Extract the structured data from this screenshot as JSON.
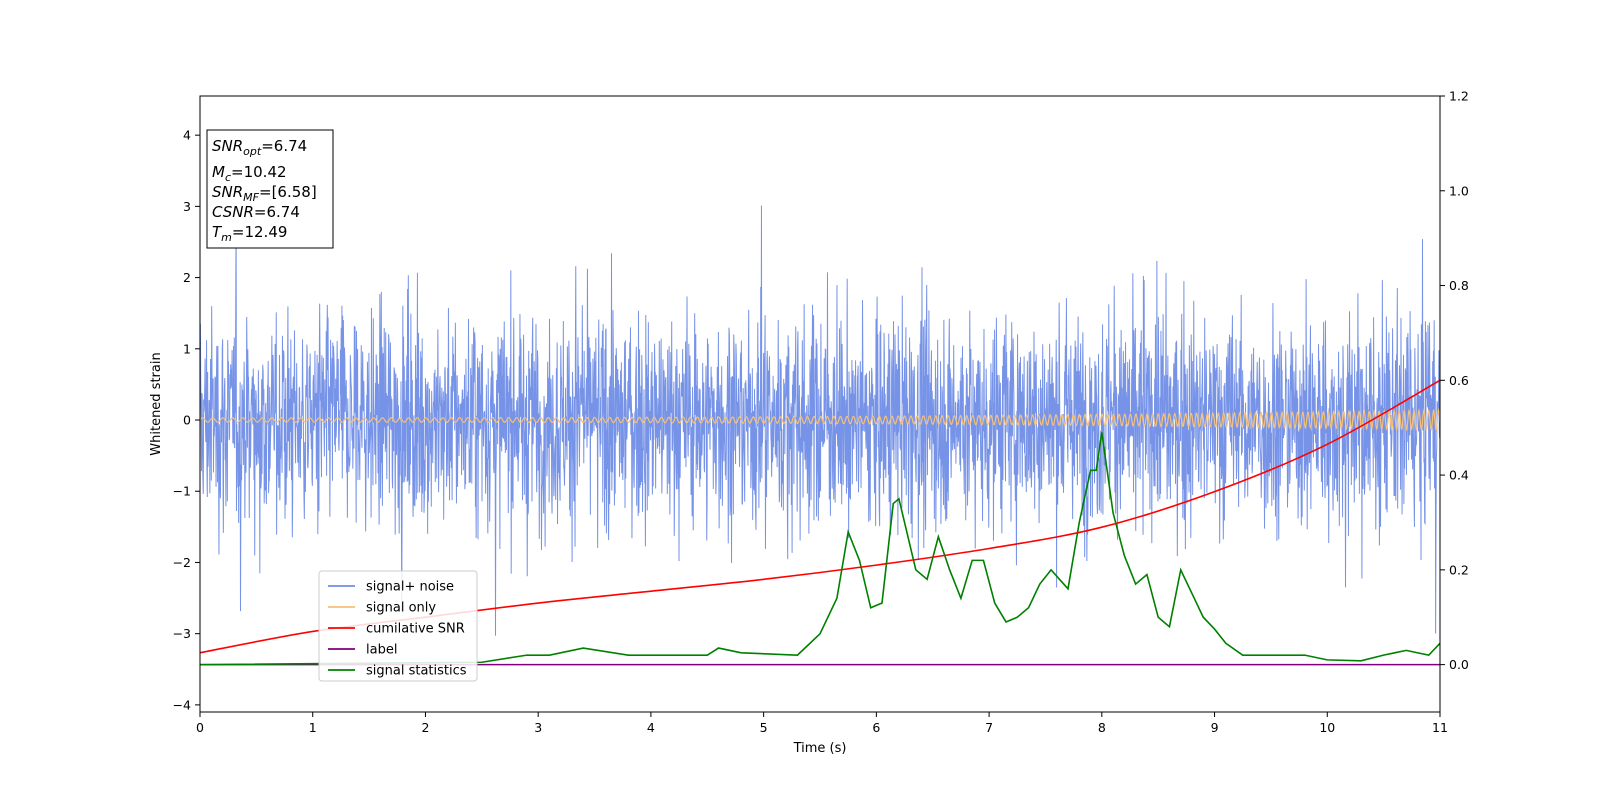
{
  "chart_data": {
    "type": "line",
    "title": "",
    "xlabel": "Time (s)",
    "ylabel": "Whitened strain",
    "xlim": [
      0,
      11
    ],
    "ylim": [
      -4.1,
      4.55
    ],
    "y2lim": [
      -0.1,
      1.2
    ],
    "xticks": [
      "0",
      "1",
      "2",
      "3",
      "4",
      "5",
      "6",
      "7",
      "8",
      "9",
      "10",
      "11"
    ],
    "yticks": [
      "−4",
      "−3",
      "−2",
      "−1",
      "0",
      "1",
      "2",
      "3",
      "4"
    ],
    "y2ticks": [
      "0.0",
      "0.2",
      "0.4",
      "0.6",
      "0.8",
      "1.0",
      "1.2"
    ],
    "grid": false,
    "legend_position": "lower-left",
    "stats": [
      {
        "name": "SNR",
        "sub": "opt",
        "value": "=6.74"
      },
      {
        "name": "M",
        "sub": "c",
        "value": "=10.42"
      },
      {
        "name": "SNR",
        "sub": "MF",
        "value": "=[6.58]"
      },
      {
        "name": "CSNR",
        "sub": "",
        "value": "=6.74"
      },
      {
        "name": "T",
        "sub": "m",
        "value": "=12.49"
      }
    ],
    "series": [
      {
        "name": "signal+ noise",
        "color": "#6f8de6",
        "axis": "left",
        "description": "whitened noisy strain, roughly Gaussian, amplitude about 1.5 with spikes to 4"
      },
      {
        "name": "signal only",
        "color": "#f5c07a",
        "axis": "left",
        "amplitude_start": 0.03,
        "amplitude_end": 0.14
      },
      {
        "name": "cumilative SNR",
        "color": "#ff0000",
        "axis": "right",
        "x": [
          0,
          1,
          2,
          3,
          4,
          5,
          6,
          7,
          8,
          9,
          10,
          11
        ],
        "y": [
          0.025,
          0.07,
          0.1,
          0.13,
          0.155,
          0.18,
          0.21,
          0.245,
          0.29,
          0.365,
          0.465,
          0.6
        ]
      },
      {
        "name": "label",
        "color": "#800080",
        "axis": "right",
        "x": [
          0,
          11
        ],
        "y": [
          0.0,
          0.0
        ]
      },
      {
        "name": "signal statistics",
        "color": "#008000",
        "axis": "right",
        "x": [
          0,
          2.5,
          2.9,
          3.1,
          3.4,
          3.8,
          4.2,
          4.5,
          4.6,
          4.8,
          5.3,
          5.5,
          5.65,
          5.75,
          5.85,
          5.95,
          6.05,
          6.15,
          6.2,
          6.25,
          6.35,
          6.45,
          6.55,
          6.65,
          6.75,
          6.85,
          6.95,
          7.05,
          7.15,
          7.25,
          7.35,
          7.45,
          7.55,
          7.7,
          7.8,
          7.9,
          7.95,
          8.0,
          8.1,
          8.2,
          8.3,
          8.4,
          8.5,
          8.6,
          8.7,
          8.8,
          8.9,
          9.0,
          9.1,
          9.25,
          9.5,
          9.8,
          10.0,
          10.3,
          10.5,
          10.7,
          10.9,
          11.0
        ],
        "y": [
          0.0,
          0.005,
          0.02,
          0.02,
          0.035,
          0.02,
          0.02,
          0.02,
          0.035,
          0.025,
          0.02,
          0.065,
          0.14,
          0.28,
          0.22,
          0.12,
          0.13,
          0.34,
          0.35,
          0.3,
          0.2,
          0.18,
          0.27,
          0.2,
          0.14,
          0.22,
          0.22,
          0.13,
          0.09,
          0.1,
          0.12,
          0.17,
          0.2,
          0.16,
          0.3,
          0.41,
          0.41,
          0.49,
          0.32,
          0.23,
          0.17,
          0.19,
          0.1,
          0.08,
          0.2,
          0.15,
          0.1,
          0.075,
          0.045,
          0.02,
          0.02,
          0.02,
          0.01,
          0.008,
          0.02,
          0.03,
          0.02,
          0.045
        ]
      }
    ]
  }
}
